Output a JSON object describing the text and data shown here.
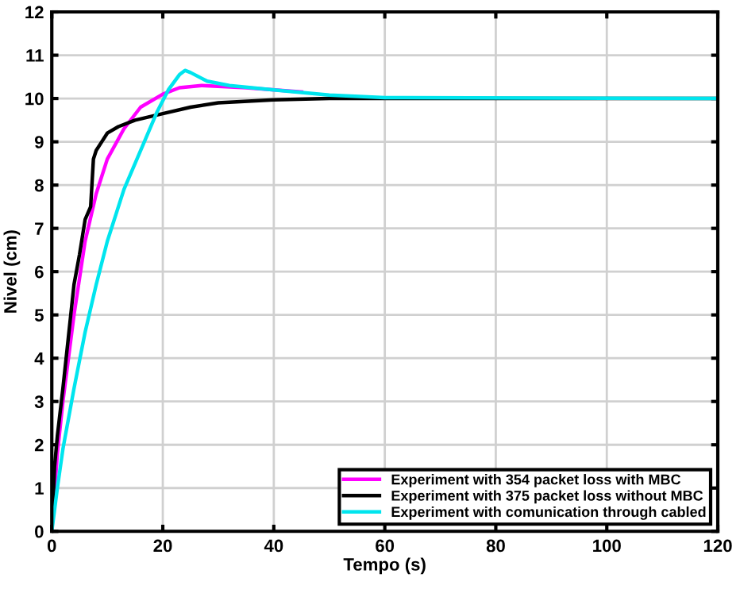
{
  "chart_data": {
    "type": "line",
    "xlabel": "Tempo (s)",
    "ylabel": "Nivel (cm)",
    "xlim": [
      0,
      120
    ],
    "ylim": [
      0,
      12
    ],
    "xticks": [
      0,
      20,
      40,
      60,
      80,
      100,
      120
    ],
    "yticks": [
      0,
      1,
      2,
      3,
      4,
      5,
      6,
      7,
      8,
      9,
      10,
      11,
      12
    ],
    "grid": true,
    "legend": "bottom right",
    "line_style": "solid",
    "series": [
      {
        "name": "Experiment with 354 packet loss with MBC",
        "color": "#ff00ff",
        "x": [
          0,
          1,
          2,
          4,
          6,
          8,
          10,
          13,
          16,
          20,
          23,
          27,
          35,
          45
        ],
        "values": [
          0,
          1.8,
          3,
          5,
          6.7,
          7.8,
          8.6,
          9.3,
          9.8,
          10.1,
          10.25,
          10.3,
          10.25,
          10.15
        ]
      },
      {
        "name": "Experiment with 375 packet loss without MBC",
        "color": "#000000",
        "x": [
          0,
          0.5,
          1,
          2,
          3,
          4,
          5,
          6,
          7,
          7.5,
          8,
          9,
          10,
          12,
          15,
          20,
          25,
          30,
          40,
          50,
          120
        ],
        "values": [
          0,
          1.5,
          2.2,
          3.3,
          4.5,
          5.7,
          6.4,
          7.2,
          7.5,
          8.6,
          8.8,
          9.0,
          9.2,
          9.35,
          9.5,
          9.65,
          9.8,
          9.9,
          9.97,
          10,
          10
        ]
      },
      {
        "name": "Experiment with comunication through cabled",
        "color": "#00e5ee",
        "x": [
          0,
          1,
          2,
          4,
          6,
          8,
          10,
          13,
          16,
          19,
          21,
          23,
          24,
          25,
          28,
          32,
          40,
          50,
          60,
          120
        ],
        "values": [
          0,
          1,
          1.9,
          3.3,
          4.6,
          5.7,
          6.7,
          7.9,
          8.8,
          9.7,
          10.2,
          10.55,
          10.65,
          10.6,
          10.4,
          10.3,
          10.2,
          10.08,
          10.02,
          10
        ]
      }
    ]
  }
}
